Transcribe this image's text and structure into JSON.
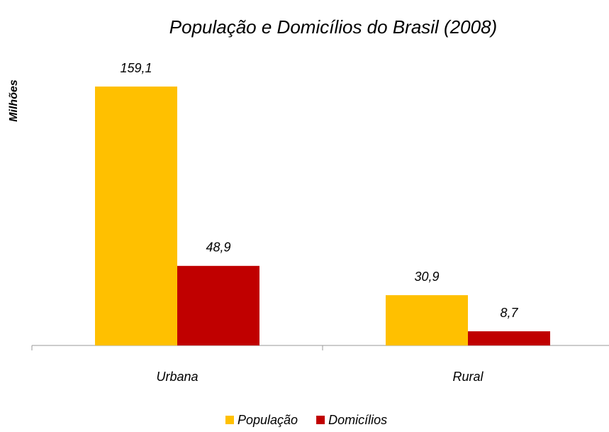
{
  "chart_data": {
    "type": "bar",
    "title": "População e Domicílios do Brasil (2008)",
    "y_label": "Milhões",
    "categories": [
      "Urbana",
      "Rural"
    ],
    "series": [
      {
        "name": "População",
        "color": "#FFC000",
        "values": [
          159.1,
          30.9
        ],
        "value_labels": [
          "159,1",
          "30,9"
        ]
      },
      {
        "name": "Domicílios",
        "color": "#C00000",
        "values": [
          48.9,
          8.7
        ],
        "value_labels": [
          "48,9",
          "8,7"
        ]
      }
    ],
    "legend": "bottom"
  }
}
